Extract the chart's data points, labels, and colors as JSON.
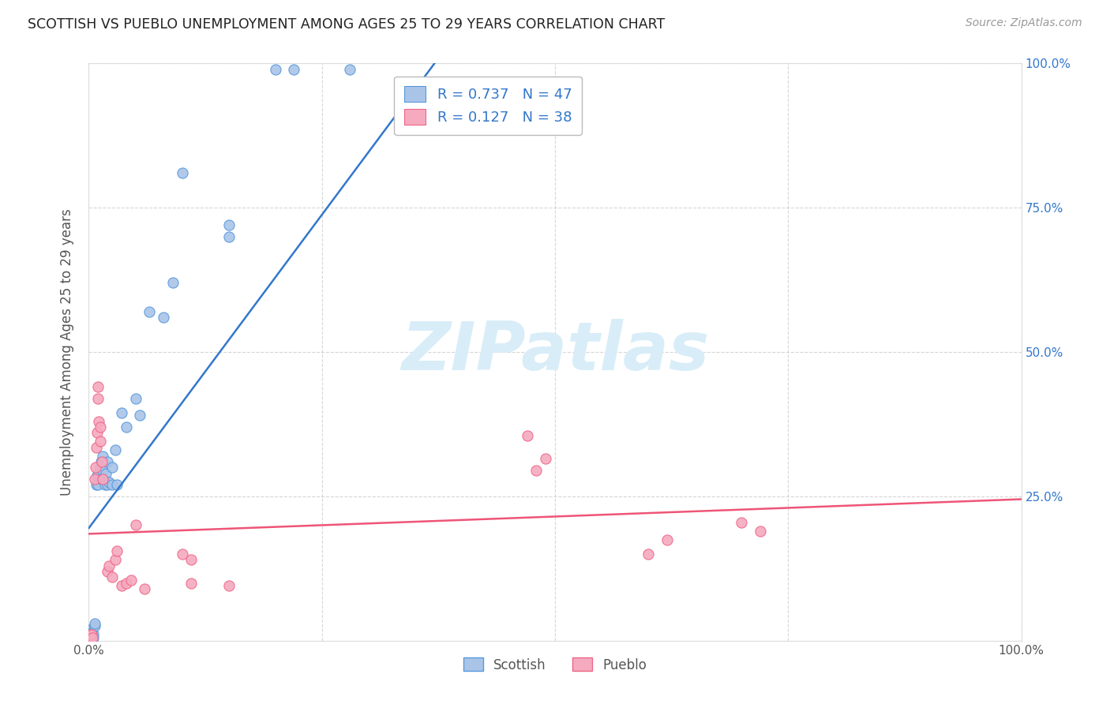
{
  "title": "SCOTTISH VS PUEBLO UNEMPLOYMENT AMONG AGES 25 TO 29 YEARS CORRELATION CHART",
  "source": "Source: ZipAtlas.com",
  "ylabel": "Unemployment Among Ages 25 to 29 years",
  "xlim": [
    0,
    1
  ],
  "ylim": [
    0,
    1
  ],
  "scottish_color": "#aac4e8",
  "pueblo_color": "#f5aabf",
  "scottish_edge_color": "#5599dd",
  "pueblo_edge_color": "#ee6688",
  "scottish_line_color": "#3377cc",
  "pueblo_line_color": "#ee5577",
  "background_color": "#ffffff",
  "grid_color": "#cccccc",
  "watermark_color": "#d8edf8",
  "scottish_R": 0.737,
  "scottish_N": 47,
  "pueblo_R": 0.127,
  "pueblo_N": 38,
  "scottish_points": [
    [
      0.001,
      0.005
    ],
    [
      0.001,
      0.008
    ],
    [
      0.001,
      0.012
    ],
    [
      0.002,
      0.005
    ],
    [
      0.002,
      0.01
    ],
    [
      0.002,
      0.015
    ],
    [
      0.003,
      0.005
    ],
    [
      0.003,
      0.01
    ],
    [
      0.003,
      0.02
    ],
    [
      0.004,
      0.008
    ],
    [
      0.004,
      0.015
    ],
    [
      0.005,
      0.005
    ],
    [
      0.005,
      0.01
    ],
    [
      0.006,
      0.025
    ],
    [
      0.006,
      0.03
    ],
    [
      0.008,
      0.27
    ],
    [
      0.009,
      0.285
    ],
    [
      0.01,
      0.27
    ],
    [
      0.01,
      0.29
    ],
    [
      0.012,
      0.3
    ],
    [
      0.013,
      0.31
    ],
    [
      0.014,
      0.28
    ],
    [
      0.015,
      0.295
    ],
    [
      0.015,
      0.32
    ],
    [
      0.016,
      0.28
    ],
    [
      0.017,
      0.27
    ],
    [
      0.018,
      0.29
    ],
    [
      0.02,
      0.31
    ],
    [
      0.02,
      0.27
    ],
    [
      0.022,
      0.275
    ],
    [
      0.025,
      0.27
    ],
    [
      0.025,
      0.3
    ],
    [
      0.028,
      0.33
    ],
    [
      0.03,
      0.27
    ],
    [
      0.035,
      0.395
    ],
    [
      0.04,
      0.37
    ],
    [
      0.05,
      0.42
    ],
    [
      0.055,
      0.39
    ],
    [
      0.065,
      0.57
    ],
    [
      0.08,
      0.56
    ],
    [
      0.09,
      0.62
    ],
    [
      0.1,
      0.81
    ],
    [
      0.15,
      0.72
    ],
    [
      0.15,
      0.7
    ],
    [
      0.2,
      0.99
    ],
    [
      0.22,
      0.99
    ],
    [
      0.28,
      0.99
    ]
  ],
  "pueblo_points": [
    [
      0.001,
      0.005
    ],
    [
      0.002,
      0.008
    ],
    [
      0.002,
      0.01
    ],
    [
      0.003,
      0.005
    ],
    [
      0.003,
      0.01
    ],
    [
      0.004,
      0.005
    ],
    [
      0.006,
      0.28
    ],
    [
      0.007,
      0.3
    ],
    [
      0.008,
      0.335
    ],
    [
      0.009,
      0.36
    ],
    [
      0.01,
      0.42
    ],
    [
      0.01,
      0.44
    ],
    [
      0.011,
      0.38
    ],
    [
      0.012,
      0.37
    ],
    [
      0.012,
      0.345
    ],
    [
      0.014,
      0.31
    ],
    [
      0.015,
      0.28
    ],
    [
      0.02,
      0.12
    ],
    [
      0.022,
      0.13
    ],
    [
      0.025,
      0.11
    ],
    [
      0.028,
      0.14
    ],
    [
      0.03,
      0.155
    ],
    [
      0.035,
      0.095
    ],
    [
      0.04,
      0.1
    ],
    [
      0.045,
      0.105
    ],
    [
      0.05,
      0.2
    ],
    [
      0.06,
      0.09
    ],
    [
      0.1,
      0.15
    ],
    [
      0.11,
      0.14
    ],
    [
      0.11,
      0.1
    ],
    [
      0.15,
      0.095
    ],
    [
      0.47,
      0.355
    ],
    [
      0.48,
      0.295
    ],
    [
      0.49,
      0.315
    ],
    [
      0.6,
      0.15
    ],
    [
      0.62,
      0.175
    ],
    [
      0.7,
      0.205
    ],
    [
      0.72,
      0.19
    ]
  ],
  "scottish_line": [
    0.0,
    0.195,
    0.38,
    1.02
  ],
  "pueblo_line": [
    0.0,
    0.185,
    1.0,
    0.245
  ]
}
